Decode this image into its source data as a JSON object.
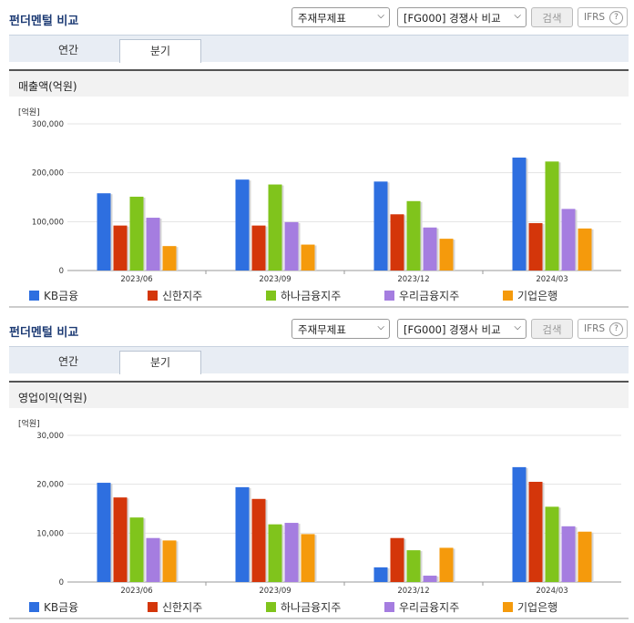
{
  "header": {
    "title": "펀더멘털 비교",
    "select_report": "주재무제표",
    "select_compare": "[FG000] 경쟁사 비교",
    "search_button": "검색",
    "ifrs_label": "IFRS",
    "ifrs_help": "?"
  },
  "tabs": [
    {
      "label": "연간",
      "active": false
    },
    {
      "label": "분기",
      "active": true
    }
  ],
  "colors": {
    "kb": "#2e6fe0",
    "shinhan": "#d4360a",
    "hana": "#80c41c",
    "woori": "#a57de0",
    "ibk": "#f59a0c"
  },
  "chart_data": [
    {
      "type": "bar",
      "title": "매출액(억원)",
      "unit": "[억원]",
      "categories": [
        "2023/06",
        "2023/09",
        "2023/12",
        "2024/03"
      ],
      "ylim": [
        0,
        300000
      ],
      "yticks": [
        "0",
        "100,000",
        "200,000",
        "300,000"
      ],
      "ytick_values": [
        0,
        100000,
        200000,
        300000
      ],
      "series": [
        {
          "name": "KB금융",
          "values": [
            158000,
            186000,
            182000,
            231000
          ]
        },
        {
          "name": "신한지주",
          "values": [
            92000,
            92000,
            115000,
            97000
          ]
        },
        {
          "name": "하나금융지주",
          "values": [
            151000,
            176000,
            142000,
            223000
          ]
        },
        {
          "name": "우리금융지주",
          "values": [
            108000,
            99000,
            88000,
            126000
          ]
        },
        {
          "name": "기업은행",
          "values": [
            50000,
            53000,
            65000,
            86000
          ]
        }
      ]
    },
    {
      "type": "bar",
      "title": "영업이익(억원)",
      "unit": "[억원]",
      "categories": [
        "2023/06",
        "2023/09",
        "2023/12",
        "2024/03"
      ],
      "ylim": [
        0,
        30000
      ],
      "yticks": [
        "0",
        "10,000",
        "20,000",
        "30,000"
      ],
      "ytick_values": [
        0,
        10000,
        20000,
        30000
      ],
      "series": [
        {
          "name": "KB금융",
          "values": [
            20300,
            19400,
            3000,
            23500
          ]
        },
        {
          "name": "신한지주",
          "values": [
            17300,
            17000,
            9000,
            20500
          ]
        },
        {
          "name": "하나금융지주",
          "values": [
            13200,
            11800,
            6500,
            15400
          ]
        },
        {
          "name": "우리금융지주",
          "values": [
            9000,
            12100,
            1300,
            11400
          ]
        },
        {
          "name": "기업은행",
          "values": [
            8500,
            9800,
            7000,
            10300
          ]
        }
      ]
    }
  ]
}
